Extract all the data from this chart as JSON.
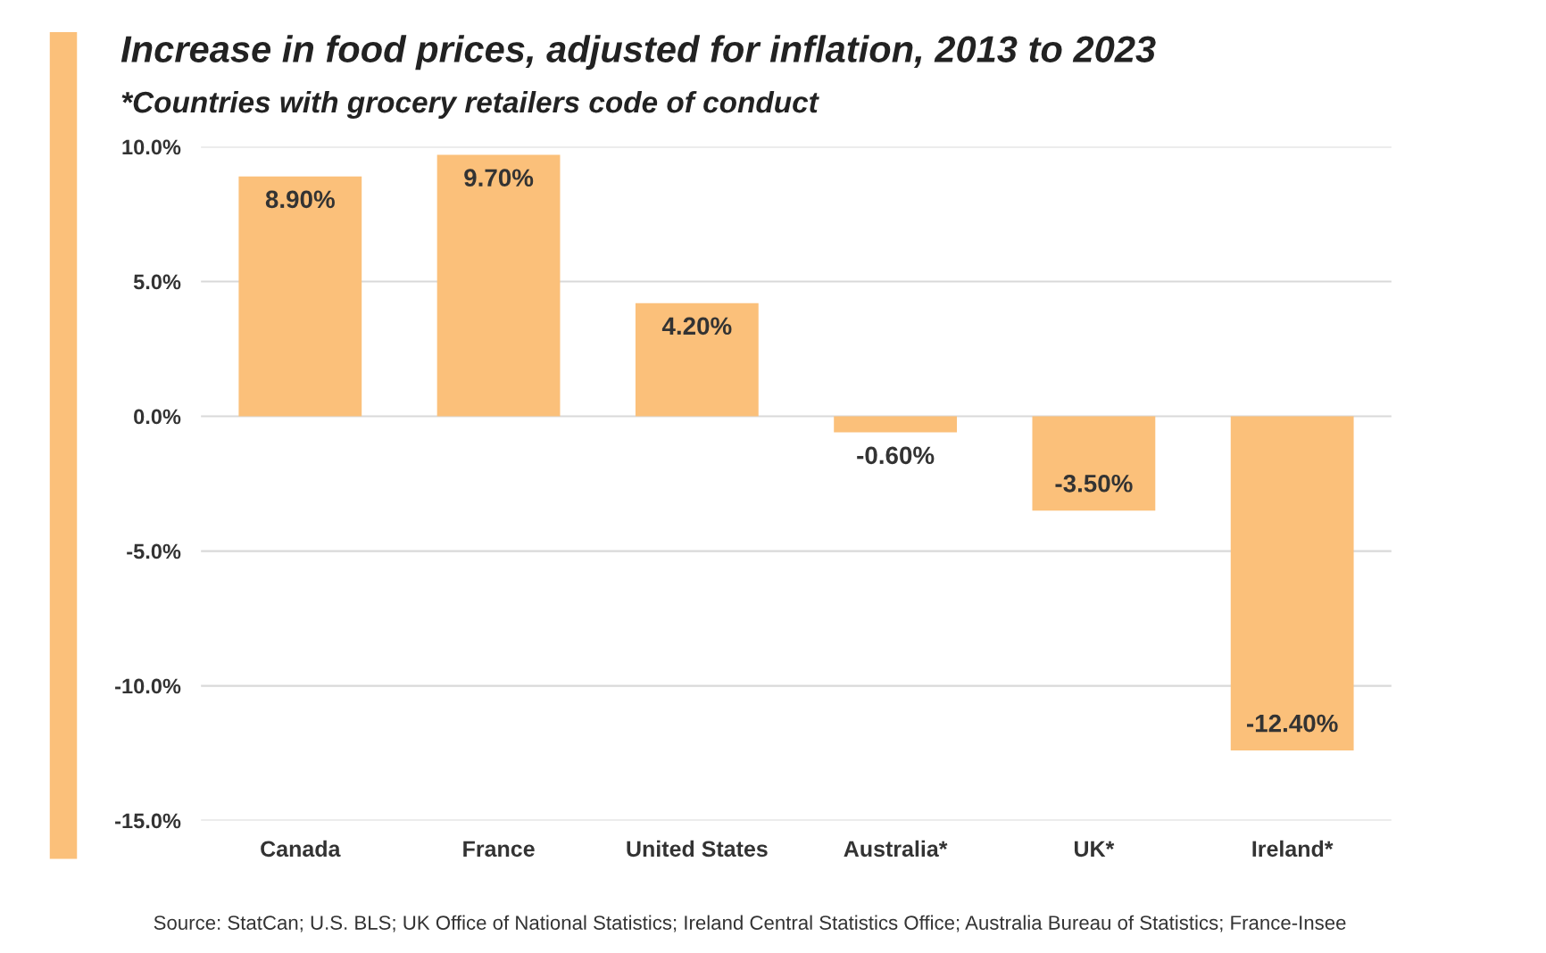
{
  "chart_data": {
    "type": "bar",
    "title": "Increase in food prices, adjusted for inflation, 2013 to 2023",
    "subtitle": "*Countries with grocery retailers code of conduct",
    "categories": [
      "Canada",
      "France",
      "United States",
      "Australia*",
      "UK*",
      "Ireland*"
    ],
    "values": [
      8.9,
      9.7,
      4.2,
      -0.6,
      -3.5,
      -12.4
    ],
    "value_labels": [
      "8.90%",
      "9.70%",
      "4.20%",
      "-0.60%",
      "-3.50%",
      "-12.40%"
    ],
    "color": "#fbc07a",
    "ylim": [
      -15,
      10
    ],
    "yticks": [
      {
        "value": -15,
        "label": "-15.0%"
      },
      {
        "value": -10,
        "label": "-10.0%"
      },
      {
        "value": -5,
        "label": "-5.0%"
      },
      {
        "value": 0,
        "label": "0.0%"
      },
      {
        "value": 5,
        "label": "5.0%"
      },
      {
        "value": 10,
        "label": "10.0%"
      }
    ],
    "grid": "y",
    "annotations": [
      "Source: StatCan; U.S. BLS; UK Office of National Statistics; Ireland Central Statistics Office; Australia Bureau of Statistics; France-Insee"
    ]
  }
}
